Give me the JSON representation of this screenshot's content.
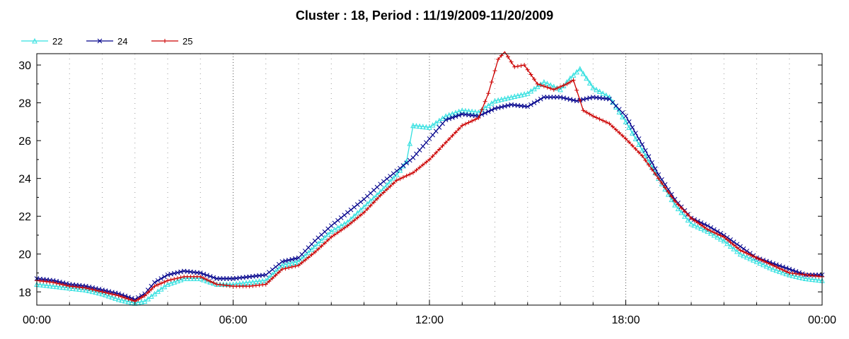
{
  "chart_data": {
    "type": "line",
    "title": "Cluster : 18, Period : 11/19/2009-11/20/2009",
    "xlabel": "",
    "ylabel": "",
    "x_ticks": [
      "00:00",
      "06:00",
      "12:00",
      "18:00",
      "00:00"
    ],
    "y_ticks": [
      "18",
      "20",
      "22",
      "24",
      "26",
      "28",
      "30"
    ],
    "xlim_hours": [
      0,
      24
    ],
    "ylim": [
      17.3,
      30.6
    ],
    "grid": "dotted",
    "legend_position": "top-left",
    "series": [
      {
        "name": "22",
        "color": "#33e0e0",
        "marker": "triangle",
        "points": [
          [
            0,
            18.4
          ],
          [
            0.5,
            18.3
          ],
          [
            1,
            18.2
          ],
          [
            1.5,
            18.1
          ],
          [
            2,
            17.9
          ],
          [
            2.5,
            17.6
          ],
          [
            3,
            17.4
          ],
          [
            3.3,
            17.5
          ],
          [
            3.6,
            17.9
          ],
          [
            4,
            18.4
          ],
          [
            4.5,
            18.7
          ],
          [
            5,
            18.7
          ],
          [
            5.5,
            18.4
          ],
          [
            6,
            18.4
          ],
          [
            6.5,
            18.5
          ],
          [
            7,
            18.6
          ],
          [
            7.5,
            19.4
          ],
          [
            8,
            19.6
          ],
          [
            8.5,
            20.4
          ],
          [
            9,
            21.2
          ],
          [
            9.5,
            21.7
          ],
          [
            10,
            22.5
          ],
          [
            10.5,
            23.3
          ],
          [
            11,
            24.2
          ],
          [
            11.3,
            24.9
          ],
          [
            11.5,
            26.8
          ],
          [
            12,
            26.7
          ],
          [
            12.5,
            27.3
          ],
          [
            13,
            27.6
          ],
          [
            13.5,
            27.5
          ],
          [
            14,
            28.1
          ],
          [
            14.5,
            28.3
          ],
          [
            15,
            28.5
          ],
          [
            15.5,
            29.1
          ],
          [
            16,
            28.7
          ],
          [
            16.3,
            29.3
          ],
          [
            16.6,
            29.8
          ],
          [
            17,
            28.8
          ],
          [
            17.5,
            28.3
          ],
          [
            18,
            27.0
          ],
          [
            18.5,
            25.5
          ],
          [
            19,
            24.0
          ],
          [
            19.5,
            22.6
          ],
          [
            20,
            21.6
          ],
          [
            20.5,
            21.2
          ],
          [
            21,
            20.7
          ],
          [
            21.5,
            20.0
          ],
          [
            22,
            19.6
          ],
          [
            22.5,
            19.2
          ],
          [
            23,
            18.9
          ],
          [
            23.5,
            18.7
          ],
          [
            24,
            18.6
          ]
        ]
      },
      {
        "name": "24",
        "color": "#00008b",
        "marker": "x",
        "points": [
          [
            0,
            18.7
          ],
          [
            0.5,
            18.6
          ],
          [
            1,
            18.4
          ],
          [
            1.5,
            18.3
          ],
          [
            2,
            18.1
          ],
          [
            2.5,
            17.9
          ],
          [
            3,
            17.6
          ],
          [
            3.3,
            17.9
          ],
          [
            3.6,
            18.5
          ],
          [
            4,
            18.9
          ],
          [
            4.5,
            19.1
          ],
          [
            5,
            19.0
          ],
          [
            5.5,
            18.7
          ],
          [
            6,
            18.7
          ],
          [
            6.5,
            18.8
          ],
          [
            7,
            18.9
          ],
          [
            7.5,
            19.6
          ],
          [
            8,
            19.8
          ],
          [
            8.5,
            20.7
          ],
          [
            9,
            21.5
          ],
          [
            9.5,
            22.2
          ],
          [
            10,
            22.9
          ],
          [
            10.5,
            23.7
          ],
          [
            11,
            24.4
          ],
          [
            11.5,
            25.1
          ],
          [
            12,
            26.1
          ],
          [
            12.5,
            27.1
          ],
          [
            13,
            27.4
          ],
          [
            13.5,
            27.3
          ],
          [
            14,
            27.7
          ],
          [
            14.5,
            27.9
          ],
          [
            15,
            27.8
          ],
          [
            15.5,
            28.3
          ],
          [
            16,
            28.3
          ],
          [
            16.5,
            28.1
          ],
          [
            17,
            28.3
          ],
          [
            17.5,
            28.2
          ],
          [
            18,
            27.3
          ],
          [
            18.5,
            25.8
          ],
          [
            19,
            24.2
          ],
          [
            19.5,
            22.9
          ],
          [
            20,
            21.9
          ],
          [
            20.5,
            21.5
          ],
          [
            21,
            21.0
          ],
          [
            21.5,
            20.4
          ],
          [
            22,
            19.8
          ],
          [
            22.5,
            19.5
          ],
          [
            23,
            19.2
          ],
          [
            23.5,
            18.9
          ],
          [
            24,
            18.9
          ]
        ]
      },
      {
        "name": "25",
        "color": "#cc0000",
        "marker": "plus",
        "points": [
          [
            0,
            18.6
          ],
          [
            0.5,
            18.5
          ],
          [
            1,
            18.3
          ],
          [
            1.5,
            18.2
          ],
          [
            2,
            18.0
          ],
          [
            2.5,
            17.8
          ],
          [
            3,
            17.5
          ],
          [
            3.3,
            17.8
          ],
          [
            3.6,
            18.3
          ],
          [
            4,
            18.6
          ],
          [
            4.5,
            18.8
          ],
          [
            5,
            18.8
          ],
          [
            5.5,
            18.4
          ],
          [
            6,
            18.3
          ],
          [
            6.5,
            18.3
          ],
          [
            7,
            18.4
          ],
          [
            7.5,
            19.2
          ],
          [
            8,
            19.4
          ],
          [
            8.5,
            20.1
          ],
          [
            9,
            20.9
          ],
          [
            9.5,
            21.5
          ],
          [
            10,
            22.2
          ],
          [
            10.5,
            23.1
          ],
          [
            11,
            23.9
          ],
          [
            11.5,
            24.3
          ],
          [
            12,
            25.0
          ],
          [
            12.5,
            25.9
          ],
          [
            13,
            26.8
          ],
          [
            13.5,
            27.2
          ],
          [
            13.8,
            28.5
          ],
          [
            14.1,
            30.3
          ],
          [
            14.3,
            30.7
          ],
          [
            14.6,
            29.9
          ],
          [
            14.9,
            30.0
          ],
          [
            15.3,
            29.0
          ],
          [
            15.8,
            28.7
          ],
          [
            16.2,
            29.0
          ],
          [
            16.4,
            29.2
          ],
          [
            16.7,
            27.6
          ],
          [
            17,
            27.3
          ],
          [
            17.5,
            26.9
          ],
          [
            18,
            26.1
          ],
          [
            18.5,
            25.2
          ],
          [
            19,
            24.0
          ],
          [
            19.5,
            22.8
          ],
          [
            20,
            21.9
          ],
          [
            20.5,
            21.3
          ],
          [
            21,
            20.9
          ],
          [
            21.5,
            20.2
          ],
          [
            22,
            19.8
          ],
          [
            22.5,
            19.4
          ],
          [
            23,
            19.0
          ],
          [
            23.5,
            18.9
          ],
          [
            24,
            18.8
          ]
        ]
      }
    ]
  }
}
